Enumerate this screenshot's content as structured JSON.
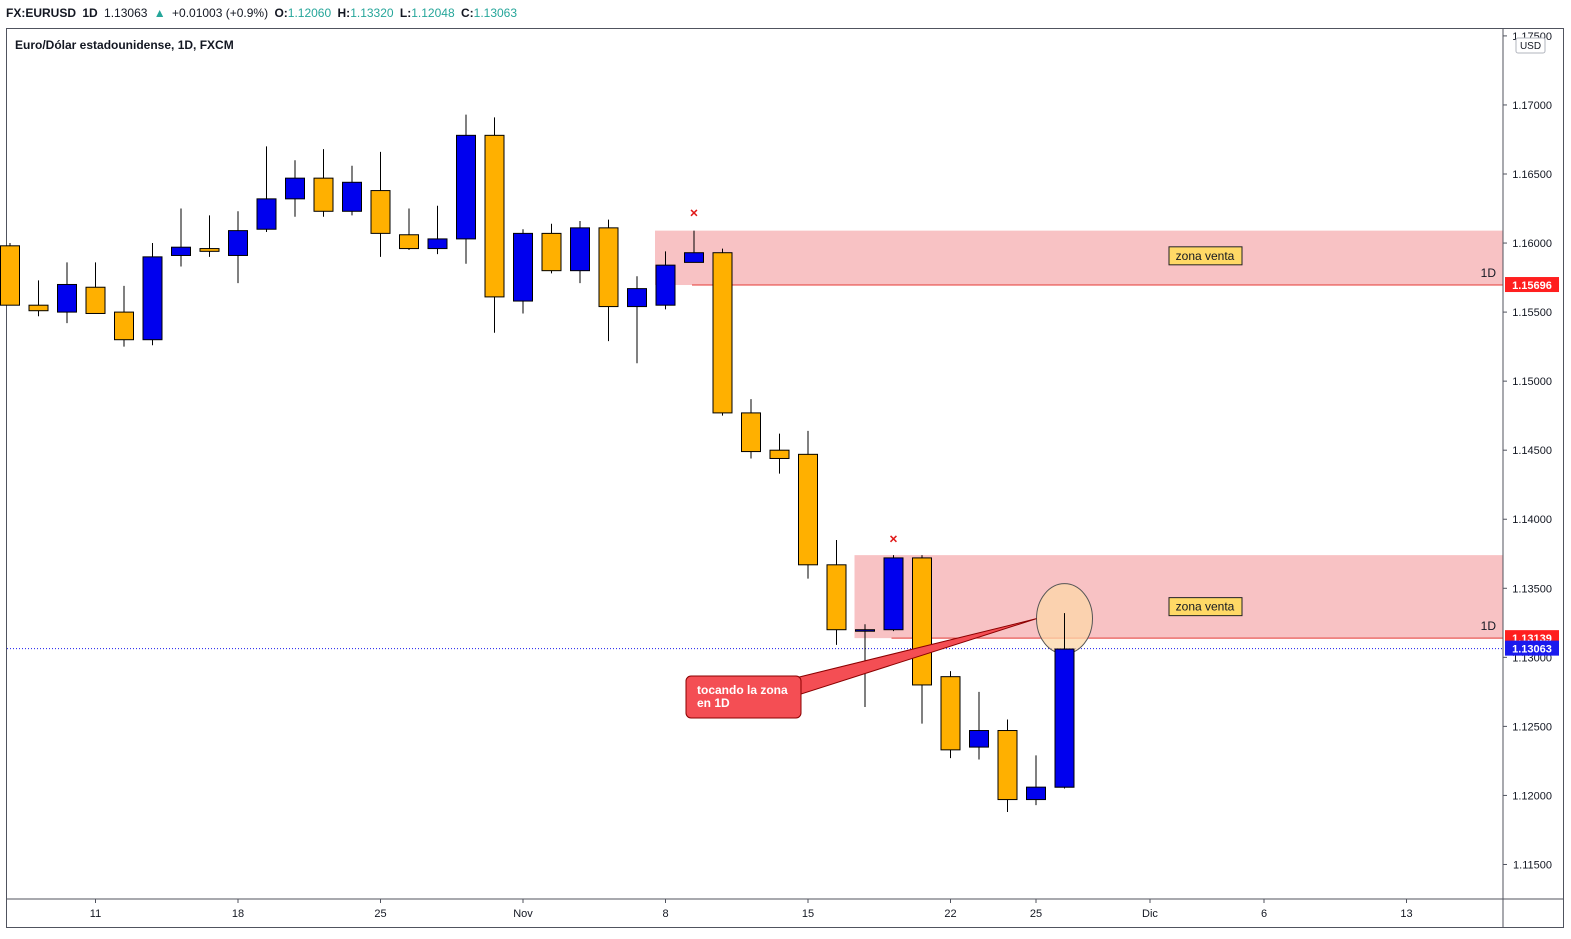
{
  "header": {
    "symbol": "FX:EURUSD",
    "interval": "1D",
    "price": "1.13063",
    "arrow": "▲",
    "change": "+0.01003 (+0.9%)",
    "open_label": "O:",
    "open": "1.12060",
    "high_label": "H:",
    "high": "1.13320",
    "low_label": "L:",
    "low": "1.12048",
    "close_label": "C:",
    "close": "1.13063"
  },
  "chart_title": "Euro/Dólar estadounidense, 1D, FXCM",
  "currency": "USD",
  "colors": {
    "up_body": "#0000ee",
    "down_body": "#ffb000",
    "zone": "#f8c2c4",
    "zone_line": "#e53935",
    "last_price_label": "#1a1aee",
    "zone_price_label": "#ff1f1f",
    "callout": "#f44e54",
    "highlight": "#fcd7a8"
  },
  "chart_data": {
    "type": "candlestick",
    "title": "Euro/Dólar estadounidense, 1D, FXCM",
    "ylim": [
      1.1125,
      1.1755
    ],
    "y_ticks": [
      "1.11500",
      "1.12000",
      "1.12500",
      "1.13000",
      "1.13500",
      "1.14000",
      "1.14500",
      "1.15000",
      "1.15500",
      "1.16000",
      "1.16500",
      "1.17000",
      "1.17500"
    ],
    "x_ticks": [
      {
        "label": "11",
        "i": 3
      },
      {
        "label": "18",
        "i": 8
      },
      {
        "label": "25",
        "i": 13
      },
      {
        "label": "Nov",
        "i": 18
      },
      {
        "label": "8",
        "i": 23
      },
      {
        "label": "15",
        "i": 28
      },
      {
        "label": "22",
        "i": 33
      },
      {
        "label": "25",
        "i": 36
      },
      {
        "label": "Dic",
        "i": 40
      },
      {
        "label": "6",
        "i": 44
      },
      {
        "label": "13",
        "i": 49
      }
    ],
    "candles": [
      {
        "o": 1.1598,
        "h": 1.16,
        "l": 1.1555,
        "c": 1.1555
      },
      {
        "o": 1.1555,
        "h": 1.1573,
        "l": 1.1547,
        "c": 1.1551
      },
      {
        "o": 1.155,
        "h": 1.1586,
        "l": 1.1542,
        "c": 1.157
      },
      {
        "o": 1.1568,
        "h": 1.1586,
        "l": 1.155,
        "c": 1.1549
      },
      {
        "o": 1.155,
        "h": 1.1569,
        "l": 1.1525,
        "c": 1.153
      },
      {
        "o": 1.153,
        "h": 1.16,
        "l": 1.1526,
        "c": 1.159
      },
      {
        "o": 1.1591,
        "h": 1.1625,
        "l": 1.1583,
        "c": 1.1597
      },
      {
        "o": 1.1596,
        "h": 1.162,
        "l": 1.159,
        "c": 1.1594
      },
      {
        "o": 1.1591,
        "h": 1.1623,
        "l": 1.1571,
        "c": 1.1609
      },
      {
        "o": 1.161,
        "h": 1.167,
        "l": 1.1608,
        "c": 1.1632
      },
      {
        "o": 1.1632,
        "h": 1.166,
        "l": 1.1619,
        "c": 1.1647
      },
      {
        "o": 1.1647,
        "h": 1.1668,
        "l": 1.1619,
        "c": 1.1623
      },
      {
        "o": 1.1623,
        "h": 1.1656,
        "l": 1.162,
        "c": 1.1644
      },
      {
        "o": 1.1638,
        "h": 1.1666,
        "l": 1.159,
        "c": 1.1607
      },
      {
        "o": 1.1606,
        "h": 1.1625,
        "l": 1.1595,
        "c": 1.1596
      },
      {
        "o": 1.1596,
        "h": 1.1627,
        "l": 1.1592,
        "c": 1.1603
      },
      {
        "o": 1.1603,
        "h": 1.1693,
        "l": 1.1585,
        "c": 1.1678
      },
      {
        "o": 1.1678,
        "h": 1.1691,
        "l": 1.1535,
        "c": 1.1561
      },
      {
        "o": 1.1558,
        "h": 1.161,
        "l": 1.1549,
        "c": 1.1607
      },
      {
        "o": 1.1607,
        "h": 1.1614,
        "l": 1.1578,
        "c": 1.158
      },
      {
        "o": 1.158,
        "h": 1.1616,
        "l": 1.1571,
        "c": 1.1611
      },
      {
        "o": 1.1611,
        "h": 1.1617,
        "l": 1.1529,
        "c": 1.1554
      },
      {
        "o": 1.1554,
        "h": 1.1576,
        "l": 1.1513,
        "c": 1.1567
      },
      {
        "o": 1.1555,
        "h": 1.1594,
        "l": 1.1552,
        "c": 1.1584
      },
      {
        "o": 1.1586,
        "h": 1.1609,
        "l": 1.1587,
        "c": 1.1593
      },
      {
        "o": 1.1593,
        "h": 1.1596,
        "l": 1.1475,
        "c": 1.1477
      },
      {
        "o": 1.1477,
        "h": 1.1487,
        "l": 1.1444,
        "c": 1.1449
      },
      {
        "o": 1.145,
        "h": 1.1462,
        "l": 1.1433,
        "c": 1.1444
      },
      {
        "o": 1.1447,
        "h": 1.1464,
        "l": 1.1357,
        "c": 1.1367
      },
      {
        "o": 1.1367,
        "h": 1.1385,
        "l": 1.1309,
        "c": 1.132
      },
      {
        "o": 1.132,
        "h": 1.1324,
        "l": 1.1264,
        "c": 1.132
      },
      {
        "o": 1.132,
        "h": 1.1374,
        "l": 1.1319,
        "c": 1.1372
      },
      {
        "o": 1.1372,
        "h": 1.1374,
        "l": 1.1252,
        "c": 1.128
      },
      {
        "o": 1.1286,
        "h": 1.129,
        "l": 1.1227,
        "c": 1.1233
      },
      {
        "o": 1.1235,
        "h": 1.1275,
        "l": 1.1226,
        "c": 1.1247
      },
      {
        "o": 1.1247,
        "h": 1.1255,
        "l": 1.1188,
        "c": 1.1197
      },
      {
        "o": 1.1197,
        "h": 1.1229,
        "l": 1.1193,
        "c": 1.1206
      },
      {
        "o": 1.1206,
        "h": 1.1332,
        "l": 1.1205,
        "c": 1.1306
      }
    ],
    "zones": [
      {
        "label": "zona venta",
        "top": 1.1609,
        "bottom": 1.15696,
        "start_i": 23,
        "price_label": "1.15696",
        "interval_label": "1D"
      },
      {
        "label": "zona venta",
        "top": 1.1374,
        "bottom": 1.13139,
        "start_i": 30,
        "price_label": "1.13139",
        "interval_label": "1D"
      }
    ],
    "last_price": {
      "value": 1.13063,
      "label": "1.13063"
    },
    "markers": [
      {
        "i": 24,
        "price": 1.1622,
        "symbol": "×"
      },
      {
        "i": 31,
        "price": 1.1386,
        "symbol": "×"
      }
    ],
    "callout": {
      "line1": "tocando la zona",
      "line2": "en 1D"
    }
  }
}
